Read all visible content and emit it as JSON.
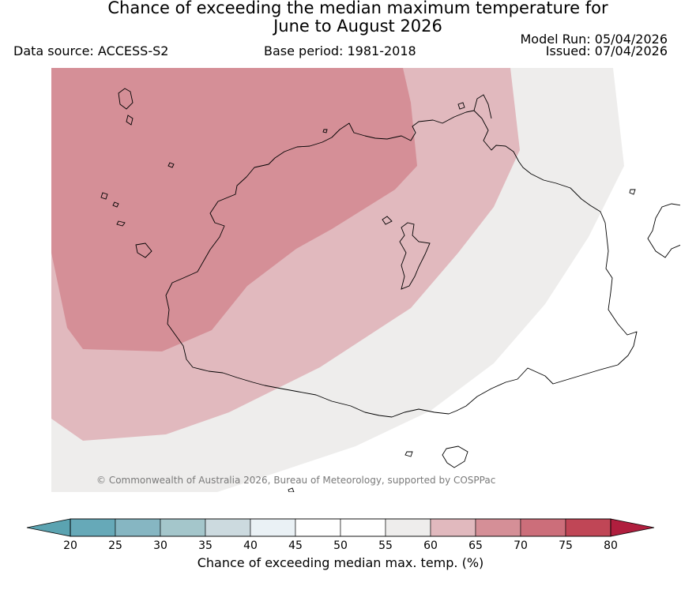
{
  "title": {
    "line1": "Chance of exceeding the median maximum temperature for",
    "line2": "June to August 2026"
  },
  "meta": {
    "data_source": "Data source: ACCESS-S2",
    "base_period": "Base period: 1981-2018",
    "model_run": "Model Run: 05/04/2026",
    "issued": "Issued: 07/04/2026"
  },
  "copyright": "© Commonwealth of Australia 2026, Bureau of Meteorology, supported by COSPPac",
  "colorbar": {
    "label": "Chance of exceeding median max. temp. (%)",
    "bins": [
      {
        "from": 20,
        "to": 25,
        "color": "#66a9b8"
      },
      {
        "from": 25,
        "to": 30,
        "color": "#86b6c2"
      },
      {
        "from": 30,
        "to": 35,
        "color": "#a4c6cb"
      },
      {
        "from": 35,
        "to": 40,
        "color": "#ccdadf"
      },
      {
        "from": 40,
        "to": 45,
        "color": "#eaf1f5"
      },
      {
        "from": 45,
        "to": 50,
        "color": "#ffffff"
      },
      {
        "from": 50,
        "to": 55,
        "color": "#ffffff"
      },
      {
        "from": 55,
        "to": 60,
        "color": "#eeedec"
      },
      {
        "from": 60,
        "to": 65,
        "color": "#e1b9be"
      },
      {
        "from": 65,
        "to": 70,
        "color": "#d58f97"
      },
      {
        "from": 70,
        "to": 75,
        "color": "#cc6e7a"
      },
      {
        "from": 75,
        "to": 80,
        "color": "#c04656"
      }
    ],
    "under_color": "#5ba3b1",
    "over_color": "#b01e3e",
    "ticks": [
      "20",
      "25",
      "30",
      "35",
      "40",
      "45",
      "50",
      "55",
      "60",
      "65",
      "70",
      "75",
      "80"
    ]
  },
  "map_zones": [
    {
      "name": "zone-65-70",
      "category": "65-70",
      "color": "#d58f97"
    },
    {
      "name": "zone-60-65",
      "category": "60-65",
      "color": "#e1b9be"
    },
    {
      "name": "zone-55-60",
      "category": "55-60",
      "color": "#eeedec"
    }
  ]
}
